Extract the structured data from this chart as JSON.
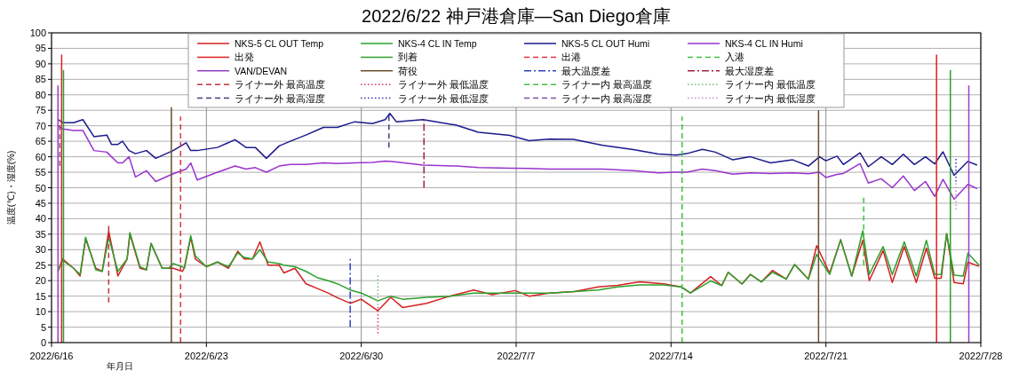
{
  "chart_data": {
    "type": "line",
    "title": "2022/6/22 神戸港倉庫—San Diego倉庫",
    "xlabel": "年月日",
    "ylabel": "温度(℃)・湿度(%)",
    "xlim": [
      "2022-06-16",
      "2022-07-28"
    ],
    "xticks": [
      {
        "value": "2022-06-16",
        "label": "2022/6/16"
      },
      {
        "value": "2022-06-23",
        "label": "2022/6/23"
      },
      {
        "value": "2022-06-30",
        "label": "2022/6/30"
      },
      {
        "value": "2022-07-07",
        "label": "2022/7/7"
      },
      {
        "value": "2022-07-14",
        "label": "2022/7/14"
      },
      {
        "value": "2022-07-21",
        "label": "2022/7/21"
      },
      {
        "value": "2022-07-28",
        "label": "2022/7/28"
      }
    ],
    "ylim": [
      0,
      100
    ],
    "yticks": [
      0,
      5,
      10,
      15,
      20,
      25,
      30,
      35,
      40,
      45,
      50,
      55,
      60,
      65,
      70,
      75,
      80,
      85,
      90,
      95,
      100
    ],
    "grid": true,
    "legend": "top",
    "x": [
      "2022-06-16T07:00",
      "2022-06-16T12:00",
      "2022-06-17T00:00",
      "2022-06-17T07:00",
      "2022-06-17T13:00",
      "2022-06-18T00:00",
      "2022-06-18T07:00",
      "2022-06-18T14:00",
      "2022-06-19T00:00",
      "2022-06-19T10:00",
      "2022-06-19T13:00",
      "2022-06-20T00:00",
      "2022-06-20T07:00",
      "2022-06-20T12:00",
      "2022-06-21T00:00",
      "2022-06-21T07:00",
      "2022-06-21T12:00",
      "2022-06-21T22:00",
      "2022-06-22T00:00",
      "2022-06-22T07:00",
      "2022-06-22T12:00",
      "2022-06-23T00:00",
      "2022-06-23T12:00",
      "2022-06-24T00:00",
      "2022-06-24T10:00",
      "2022-06-24T17:00",
      "2022-06-25T02:00",
      "2022-06-25T10:00",
      "2022-06-25T19:00",
      "2022-06-26T07:00",
      "2022-06-26T12:00",
      "2022-06-27T00:00",
      "2022-06-27T12:00",
      "2022-06-28T00:00",
      "2022-06-28T12:00",
      "2022-06-28T22:00",
      "2022-06-29T12:00",
      "2022-06-30T00:00",
      "2022-06-30T18:00",
      "2022-07-01T08:00",
      "2022-07-01T21:00",
      "2022-07-02T23:00",
      "2022-07-04T00:00",
      "2022-07-05T02:00",
      "2022-07-05T22:00",
      "2022-07-06T23:00",
      "2022-07-07T14:00",
      "2022-07-08T12:00",
      "2022-07-09T15:00",
      "2022-07-10T17:00",
      "2022-07-11T14:00",
      "2022-07-12T14:00",
      "2022-07-13T16:00",
      "2022-07-14T11:00",
      "2022-07-14T21:00",
      "2022-07-15T19:00",
      "2022-07-16T07:00",
      "2022-07-16T14:00",
      "2022-07-17T05:00",
      "2022-07-17T14:00",
      "2022-07-18T02:00",
      "2022-07-18T14:00",
      "2022-07-19T05:00",
      "2022-07-19T14:00",
      "2022-07-20T05:00",
      "2022-07-20T14:00",
      "2022-07-21T04:00",
      "2022-07-21T16:00",
      "2022-07-22T04:00",
      "2022-07-22T16:00",
      "2022-07-22T23:00",
      "2022-07-23T14:00",
      "2022-07-24T00:00",
      "2022-07-24T13:00",
      "2022-07-25T02:00",
      "2022-07-25T13:00",
      "2022-07-25T22:00",
      "2022-07-26T05:00",
      "2022-07-26T11:00",
      "2022-07-26T19:00",
      "2022-07-27T05:00",
      "2022-07-27T10:00",
      "2022-07-27T22:00"
    ],
    "series": [
      {
        "name": "NKS-5 CL OUT Temp",
        "color": "#d42020",
        "line_style": "solid",
        "values": [
          23,
          27,
          24,
          21.5,
          33.5,
          24,
          23,
          36,
          21.5,
          27,
          35,
          24,
          23.5,
          32,
          24,
          24,
          24,
          23,
          24,
          34,
          27,
          24.5,
          26,
          24,
          29.5,
          27,
          27,
          32.5,
          25,
          25,
          22.5,
          24,
          19,
          17.5,
          16,
          14.5,
          12.7,
          14,
          10.3,
          14.6,
          11.3,
          12.7,
          15,
          17,
          15.5,
          16.8,
          15,
          16,
          16.5,
          18,
          18.5,
          19.6,
          19,
          18,
          16,
          21.3,
          18.4,
          22.7,
          18.9,
          22,
          19.6,
          23.3,
          20.5,
          25.2,
          20.5,
          31.3,
          22.4,
          33.2,
          21.5,
          33,
          20,
          29.7,
          19.4,
          31,
          19.4,
          30.5,
          20.8,
          20.8,
          35.2,
          19.4,
          19,
          26,
          24.6
        ]
      },
      {
        "name": "NKS-4 CL IN Temp",
        "color": "#2ca02c",
        "line_style": "solid",
        "values": [
          23,
          26.5,
          24,
          22,
          34,
          23.5,
          23,
          34,
          23,
          27,
          35.5,
          24.5,
          23.5,
          32,
          24,
          24,
          25.5,
          24.5,
          24,
          34.5,
          28,
          24.5,
          26,
          24.5,
          29,
          27.5,
          27,
          30,
          26,
          25.5,
          25,
          24.5,
          23,
          21,
          20,
          19,
          17,
          16,
          13.5,
          15,
          14,
          14.6,
          15,
          16,
          16,
          16,
          16,
          16,
          16.5,
          17,
          18,
          18.6,
          18.6,
          18,
          16,
          19.9,
          18.4,
          22.7,
          18.9,
          22,
          19.6,
          22.7,
          20.5,
          25.2,
          20.5,
          28.5,
          22,
          33.2,
          21.5,
          36.1,
          22,
          31,
          22,
          32.5,
          21.5,
          33,
          22,
          22,
          35.2,
          21.8,
          21.5,
          28.9,
          25
        ]
      },
      {
        "name": "NKS-5 CL OUT Humi",
        "color": "#1a1a8c",
        "line_style": "solid",
        "x": [
          "2022-06-16T07:00",
          "2022-06-16T12:00",
          "2022-06-17T00:00",
          "2022-06-17T10:00",
          "2022-06-17T22:00",
          "2022-06-18T12:00",
          "2022-06-18T17:00",
          "2022-06-19T00:00",
          "2022-06-19T05:00",
          "2022-06-19T12:00",
          "2022-06-19T19:00",
          "2022-06-20T07:00",
          "2022-06-20T17:00",
          "2022-06-21T12:00",
          "2022-06-22T02:00",
          "2022-06-22T07:00",
          "2022-06-22T14:00",
          "2022-06-23T12:00",
          "2022-06-24T07:00",
          "2022-06-24T19:00",
          "2022-06-25T05:00",
          "2022-06-25T17:00",
          "2022-06-26T07:00",
          "2022-06-26T19:00",
          "2022-06-27T12:00",
          "2022-06-28T07:00",
          "2022-06-28T22:00",
          "2022-06-29T17:00",
          "2022-06-30T12:00",
          "2022-07-01T02:00",
          "2022-07-01T07:00",
          "2022-07-01T14:00",
          "2022-07-02T19:00",
          "2022-07-04T07:00",
          "2022-07-05T07:00",
          "2022-07-06T17:00",
          "2022-07-07T14:00",
          "2022-07-08T12:00",
          "2022-07-09T14:00",
          "2022-07-10T22:00",
          "2022-07-12T07:00",
          "2022-07-13T10:00",
          "2022-07-14T05:00",
          "2022-07-14T17:00",
          "2022-07-15T10:00",
          "2022-07-16T00:00",
          "2022-07-16T19:00",
          "2022-07-17T14:00",
          "2022-07-18T12:00",
          "2022-07-19T12:00",
          "2022-07-20T05:00",
          "2022-07-20T17:00",
          "2022-07-21T00:00",
          "2022-07-21T12:00",
          "2022-07-21T19:00",
          "2022-07-22T13:00",
          "2022-07-22T22:00",
          "2022-07-23T12:00",
          "2022-07-24T00:00",
          "2022-07-24T12:00",
          "2022-07-25T00:00",
          "2022-07-25T12:00",
          "2022-07-25T22:00",
          "2022-07-26T07:00",
          "2022-07-26T19:00",
          "2022-07-27T10:00",
          "2022-07-27T20:00"
        ],
        "values": [
          72,
          71,
          71,
          72,
          66.5,
          67,
          64,
          64,
          65,
          62,
          61,
          62,
          59.5,
          62,
          64.5,
          62,
          62,
          63,
          65.5,
          63,
          63,
          59.5,
          63.5,
          65,
          67,
          69.5,
          69.5,
          71.3,
          70.7,
          72,
          74,
          71.3,
          72,
          70.2,
          67.9,
          66.9,
          65.2,
          65.7,
          65.6,
          63.7,
          62.3,
          60.9,
          60.5,
          61,
          62.4,
          61.5,
          59,
          60,
          58,
          59,
          57,
          60,
          58.7,
          60.2,
          57.5,
          61.3,
          56.8,
          60,
          57.5,
          60.8,
          57.5,
          60,
          57.7,
          61.6,
          54,
          58.5,
          57.3
        ]
      },
      {
        "name": "NKS-4 CL IN Humi",
        "color": "#9933cc",
        "line_style": "solid",
        "x": [
          "2022-06-16T07:00",
          "2022-06-16T12:00",
          "2022-06-17T00:00",
          "2022-06-17T10:00",
          "2022-06-17T22:00",
          "2022-06-18T12:00",
          "2022-06-18T17:00",
          "2022-06-19T00:00",
          "2022-06-19T05:00",
          "2022-06-19T12:00",
          "2022-06-19T19:00",
          "2022-06-20T07:00",
          "2022-06-20T17:00",
          "2022-06-21T12:00",
          "2022-06-22T02:00",
          "2022-06-22T07:00",
          "2022-06-22T14:00",
          "2022-06-23T12:00",
          "2022-06-24T07:00",
          "2022-06-24T19:00",
          "2022-06-25T05:00",
          "2022-06-25T17:00",
          "2022-06-26T07:00",
          "2022-06-26T19:00",
          "2022-06-27T12:00",
          "2022-06-28T07:00",
          "2022-06-28T22:00",
          "2022-06-29T17:00",
          "2022-06-30T12:00",
          "2022-07-01T02:00",
          "2022-07-01T07:00",
          "2022-07-01T14:00",
          "2022-07-02T19:00",
          "2022-07-04T07:00",
          "2022-07-05T07:00",
          "2022-07-06T17:00",
          "2022-07-07T14:00",
          "2022-07-08T12:00",
          "2022-07-09T14:00",
          "2022-07-10T22:00",
          "2022-07-12T07:00",
          "2022-07-13T10:00",
          "2022-07-14T05:00",
          "2022-07-14T17:00",
          "2022-07-15T10:00",
          "2022-07-16T00:00",
          "2022-07-16T19:00",
          "2022-07-17T14:00",
          "2022-07-18T12:00",
          "2022-07-19T12:00",
          "2022-07-20T05:00",
          "2022-07-20T17:00",
          "2022-07-21T00:00",
          "2022-07-21T12:00",
          "2022-07-21T19:00",
          "2022-07-22T13:00",
          "2022-07-22T22:00",
          "2022-07-23T12:00",
          "2022-07-24T00:00",
          "2022-07-24T12:00",
          "2022-07-25T00:00",
          "2022-07-25T12:00",
          "2022-07-25T22:00",
          "2022-07-26T07:00",
          "2022-07-26T19:00",
          "2022-07-27T10:00",
          "2022-07-27T20:00"
        ],
        "values": [
          70,
          69,
          68.5,
          68.5,
          62,
          61.5,
          60,
          58,
          58,
          60,
          53.5,
          55.5,
          52,
          54.5,
          56,
          58,
          52.5,
          55,
          57,
          56,
          56.5,
          55,
          57,
          57.5,
          57.5,
          58,
          57.8,
          58,
          58.2,
          58.6,
          58.5,
          58.3,
          57.3,
          57,
          56.5,
          56.3,
          56.2,
          56,
          56,
          56,
          55.5,
          54.8,
          55,
          55,
          56,
          55.5,
          54.4,
          54.8,
          54.6,
          54.8,
          54.5,
          55,
          53.3,
          54.3,
          54.6,
          57.8,
          51.5,
          52.9,
          50,
          53.8,
          49.1,
          52,
          47.2,
          52.7,
          46.3,
          51.1,
          49.7
        ]
      },
      {
        "name": "出発",
        "color": "#e02020",
        "line_style": "solid",
        "x": [
          "2022-06-16T11:00",
          "2022-06-16T11:00"
        ],
        "values": [
          0,
          93
        ]
      },
      {
        "name": "到着",
        "color": "#30a030",
        "line_style": "solid",
        "x": [
          "2022-06-16T13:00",
          "2022-06-16T13:00"
        ],
        "values": [
          0,
          88
        ]
      },
      {
        "name": "出港",
        "color": "#e03040",
        "line_style": "dashed",
        "x": [
          "2022-06-21T20:00",
          "2022-06-21T20:00"
        ],
        "values": [
          0,
          73
        ]
      },
      {
        "name": "入港",
        "color": "#40c040",
        "line_style": "dashed",
        "x": [
          "2022-07-14T12:00",
          "2022-07-14T12:00"
        ],
        "values": [
          0,
          73
        ]
      },
      {
        "name": "VAN/DEVAN",
        "color": "#9a40c8",
        "line_style": "solid",
        "x": [
          "2022-06-16T07:00",
          "2022-06-16T07:00"
        ],
        "values": [
          0,
          83
        ]
      },
      {
        "name": "荷役",
        "color": "#6b4c2a",
        "line_style": "solid",
        "x": [
          "2022-06-21T10:00",
          "2022-06-21T10:00"
        ],
        "values": [
          0,
          76
        ]
      },
      {
        "name": "最大温度差",
        "color": "#3040c0",
        "line_style": "dashdot",
        "x": [
          "2022-06-29T12:00",
          "2022-06-29T12:00"
        ],
        "values": [
          5,
          27
        ]
      },
      {
        "name": "最大湿度差",
        "color": "#a02040",
        "line_style": "dashdot",
        "x": [
          "2022-07-02T20:00",
          "2022-07-02T20:00"
        ],
        "values": [
          50,
          72
        ]
      },
      {
        "name": "ライナー外 最高温度",
        "color": "#c03040",
        "line_style": "dashed",
        "x": [
          "2022-06-18T14:00",
          "2022-06-18T14:00"
        ],
        "values": [
          13,
          38
        ]
      },
      {
        "name": "ライナー外 最低温度",
        "color": "#e03060",
        "line_style": "dotted",
        "x": [
          "2022-06-30T18:00",
          "2022-06-30T18:00"
        ],
        "values": [
          3,
          12
        ]
      },
      {
        "name": "ライナー内 最高温度",
        "color": "#40c040",
        "line_style": "dashed",
        "x": [
          "2022-07-22T17:00",
          "2022-07-22T17:00"
        ],
        "values": [
          25,
          47
        ]
      },
      {
        "name": "ライナー内 最低温度",
        "color": "#70c070",
        "line_style": "dotted",
        "x": [
          "2022-06-30T18:00",
          "2022-06-30T18:00"
        ],
        "values": [
          12,
          22
        ]
      },
      {
        "name": "ライナー外 最高湿度",
        "color": "#404080",
        "line_style": "dashed",
        "x": [
          "2022-07-01T06:00",
          "2022-07-01T06:00"
        ],
        "values": [
          63,
          74
        ]
      },
      {
        "name": "ライナー外 最低湿度",
        "color": "#3030c0",
        "line_style": "dotted",
        "x": [
          "2022-07-26T21:00",
          "2022-07-26T21:00"
        ],
        "values": [
          52,
          60
        ]
      },
      {
        "name": "ライナー内 最高湿度",
        "color": "#8050a0",
        "line_style": "dashed",
        "x": [
          "2022-06-16T09:00",
          "2022-06-16T09:00"
        ],
        "values": [
          57,
          72
        ]
      },
      {
        "name": "ライナー内 最低湿度",
        "color": "#c090e0",
        "line_style": "dotted",
        "x": [
          "2022-07-26T21:00",
          "2022-07-26T21:00"
        ],
        "values": [
          43,
          52
        ]
      },
      {
        "color": "#e02020",
        "line_style": "solid",
        "x": [
          "2022-07-26T00:00",
          "2022-07-26T00:00"
        ],
        "values": [
          0,
          93
        ]
      },
      {
        "color": "#30a030",
        "line_style": "solid",
        "x": [
          "2022-07-26T15:00",
          "2022-07-26T15:00"
        ],
        "values": [
          0,
          88
        ]
      },
      {
        "color": "#9a40c8",
        "line_style": "solid",
        "x": [
          "2022-07-27T11:00",
          "2022-07-27T11:00"
        ],
        "values": [
          0,
          83
        ]
      },
      {
        "color": "#6b4c2a",
        "line_style": "solid",
        "x": [
          "2022-07-20T16:00",
          "2022-07-20T16:00"
        ],
        "values": [
          0,
          75
        ]
      }
    ]
  }
}
